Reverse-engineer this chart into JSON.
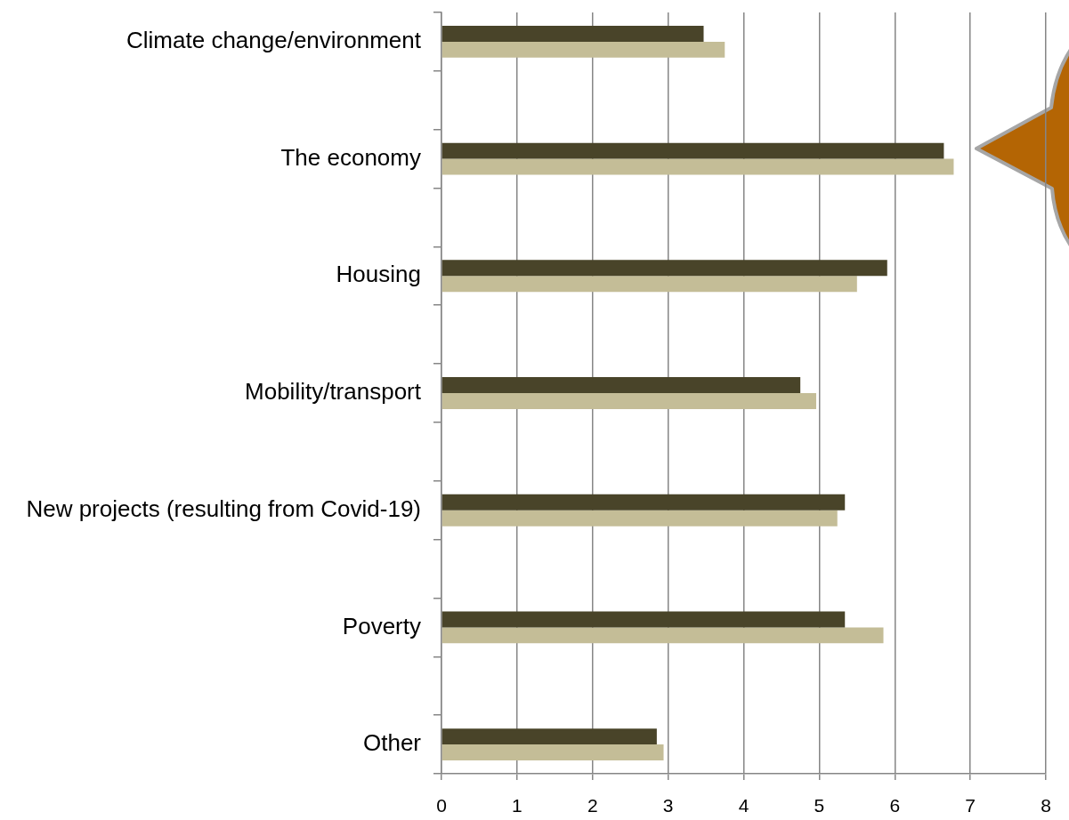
{
  "chart_data": {
    "type": "bar",
    "orientation": "horizontal",
    "categories": [
      "Climate change/environment",
      null,
      "The economy",
      null,
      "Housing",
      null,
      "Mobility/transport",
      null,
      "New projects (resulting from Covid-19)",
      null,
      "Poverty",
      null,
      "Other"
    ],
    "series": [
      {
        "color": "#494429",
        "values": [
          3.47,
          null,
          6.65,
          null,
          5.9,
          null,
          4.75,
          null,
          5.34,
          null,
          5.34,
          null,
          2.85
        ]
      },
      {
        "color": "#c4bd97",
        "values": [
          3.75,
          null,
          6.78,
          null,
          5.5,
          null,
          4.96,
          null,
          5.24,
          null,
          5.85,
          null,
          2.94
        ]
      }
    ],
    "xlim": [
      0,
      8
    ],
    "xticks": [
      0,
      1,
      2,
      3,
      4,
      5,
      6,
      7,
      8
    ],
    "grid": "x"
  }
}
